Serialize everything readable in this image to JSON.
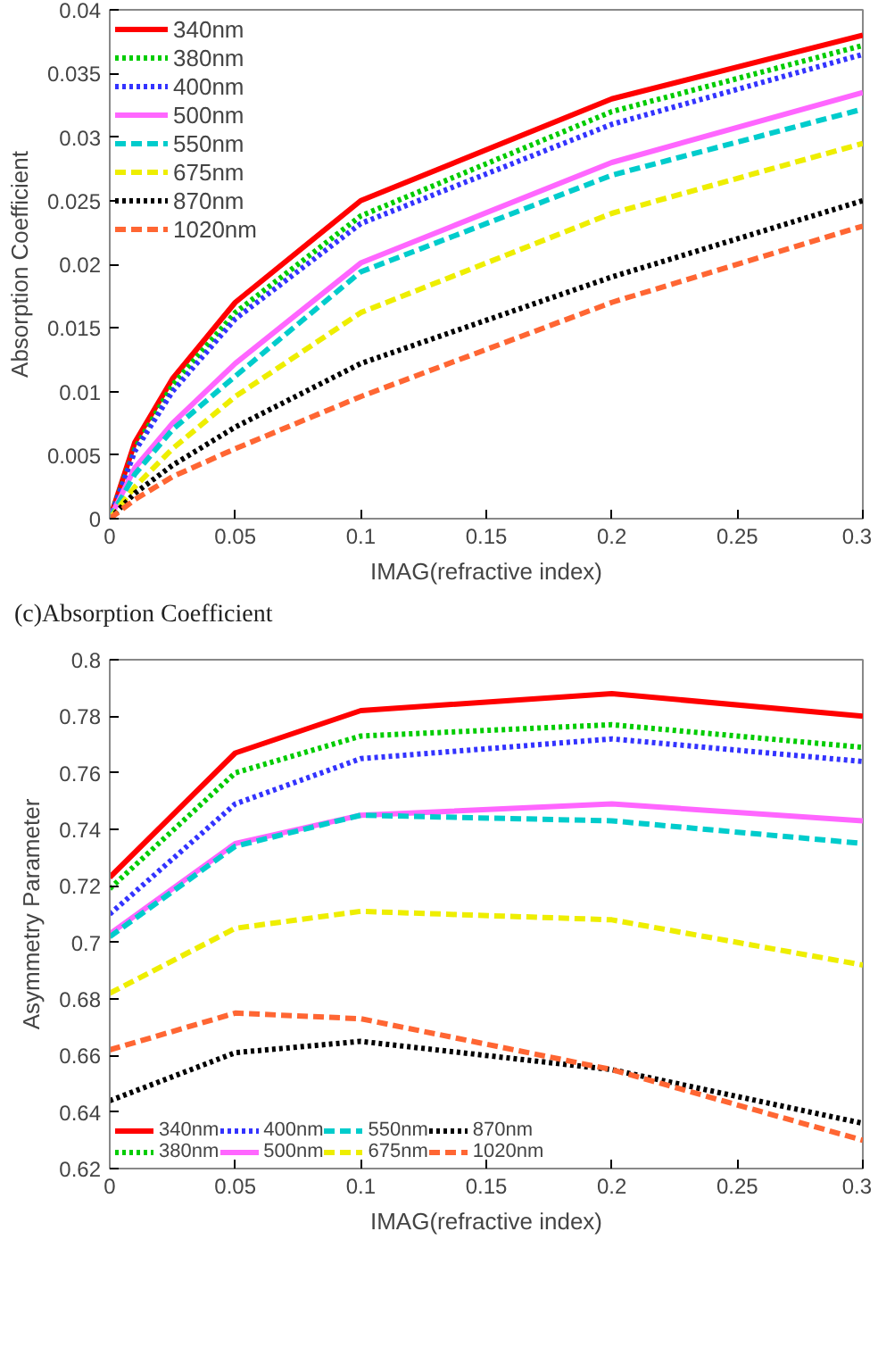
{
  "chart_data": [
    {
      "type": "line",
      "xlabel": "IMAG(refractive index)",
      "ylabel": "Absorption Coefficient",
      "annotations": [
        "(c)Absorption Coefficient"
      ],
      "legend": "top left",
      "x": [
        0,
        0.01,
        0.025,
        0.05,
        0.1,
        0.2,
        0.3
      ],
      "xlim": [
        0,
        0.3
      ],
      "xticks": [
        0,
        0.05,
        0.1,
        0.15,
        0.2,
        0.25,
        0.3
      ],
      "ylim": [
        0,
        0.04
      ],
      "yticks": [
        0,
        0.005,
        0.01,
        0.015,
        0.02,
        0.025,
        0.03,
        0.035,
        0.04
      ],
      "series": [
        {
          "name": "340nm",
          "color": "#ff0000",
          "line_style": "solid",
          "values": [
            0,
            0.006,
            0.011,
            0.017,
            0.025,
            0.033,
            0.038
          ]
        },
        {
          "name": "380nm",
          "color": "#00cc00",
          "line_style": "dotted",
          "values": [
            0,
            0.0055,
            0.0105,
            0.0162,
            0.0238,
            0.032,
            0.0372
          ]
        },
        {
          "name": "400nm",
          "color": "#3333ff",
          "line_style": "dotted",
          "values": [
            0,
            0.0053,
            0.01,
            0.0157,
            0.0232,
            0.031,
            0.0365
          ]
        },
        {
          "name": "500nm",
          "color": "#ff66ff",
          "line_style": "solid",
          "values": [
            0,
            0.004,
            0.0075,
            0.0122,
            0.0201,
            0.028,
            0.0335
          ]
        },
        {
          "name": "550nm",
          "color": "#00cccc",
          "line_style": "dashed",
          "values": [
            0,
            0.0035,
            0.007,
            0.0112,
            0.0194,
            0.027,
            0.0322
          ]
        },
        {
          "name": "675nm",
          "color": "#eeee00",
          "line_style": "dashed",
          "values": [
            0,
            0.0025,
            0.0055,
            0.0096,
            0.0162,
            0.024,
            0.0295
          ]
        },
        {
          "name": "870nm",
          "color": "#000000",
          "line_style": "dotted",
          "values": [
            0,
            0.002,
            0.0042,
            0.0072,
            0.0122,
            0.019,
            0.025
          ]
        },
        {
          "name": "1020nm",
          "color": "#ff6633",
          "line_style": "dashed",
          "values": [
            0,
            0.0015,
            0.0033,
            0.0055,
            0.0096,
            0.017,
            0.023
          ]
        }
      ]
    },
    {
      "type": "line",
      "xlabel": "IMAG(refractive index)",
      "ylabel": "Asymmetry Parameter",
      "legend": "bottom left",
      "x": [
        0,
        0.05,
        0.1,
        0.2,
        0.3
      ],
      "xlim": [
        0,
        0.3
      ],
      "xticks": [
        0,
        0.05,
        0.1,
        0.15,
        0.2,
        0.25,
        0.3
      ],
      "ylim": [
        0.62,
        0.8
      ],
      "yticks": [
        0.62,
        0.64,
        0.66,
        0.68,
        0.7,
        0.72,
        0.74,
        0.76,
        0.78,
        0.8
      ],
      "series": [
        {
          "name": "340nm",
          "color": "#ff0000",
          "line_style": "solid",
          "values": [
            0.723,
            0.767,
            0.782,
            0.788,
            0.78
          ]
        },
        {
          "name": "380nm",
          "color": "#00cc00",
          "line_style": "dotted",
          "values": [
            0.719,
            0.76,
            0.773,
            0.777,
            0.769
          ]
        },
        {
          "name": "400nm",
          "color": "#3333ff",
          "line_style": "dotted",
          "values": [
            0.71,
            0.749,
            0.765,
            0.772,
            0.764
          ]
        },
        {
          "name": "500nm",
          "color": "#ff66ff",
          "line_style": "solid",
          "values": [
            0.703,
            0.735,
            0.745,
            0.749,
            0.743
          ]
        },
        {
          "name": "550nm",
          "color": "#00cccc",
          "line_style": "dashed",
          "values": [
            0.702,
            0.734,
            0.745,
            0.743,
            0.735
          ]
        },
        {
          "name": "675nm",
          "color": "#eeee00",
          "line_style": "dashed",
          "values": [
            0.682,
            0.705,
            0.711,
            0.708,
            0.692
          ]
        },
        {
          "name": "870nm",
          "color": "#000000",
          "line_style": "dotted",
          "values": [
            0.644,
            0.661,
            0.665,
            0.655,
            0.636
          ]
        },
        {
          "name": "1020nm",
          "color": "#ff6633",
          "line_style": "dashed",
          "values": [
            0.662,
            0.675,
            0.673,
            0.655,
            0.63
          ]
        }
      ]
    }
  ]
}
